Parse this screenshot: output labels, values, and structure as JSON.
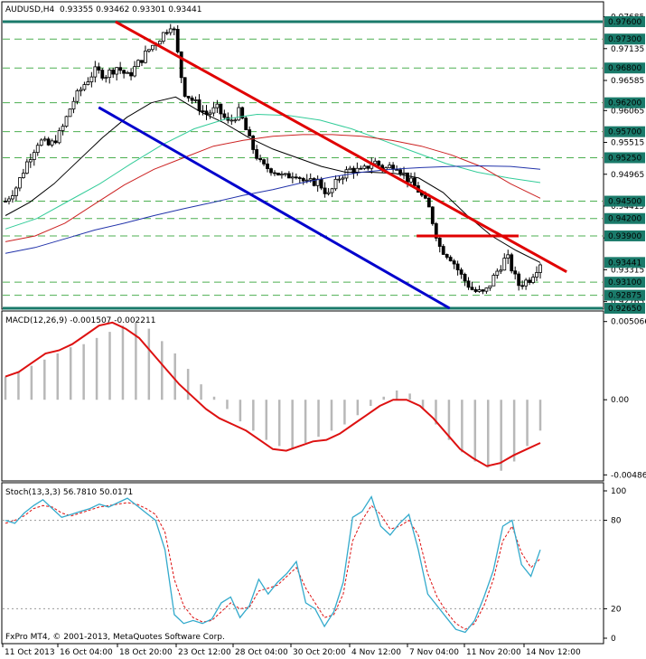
{
  "header": {
    "symbol": "AUDUSD,H4",
    "ohlc": "0.93355 0.93462 0.93301 0.93441"
  },
  "macd": {
    "title": "MACD(12,26,9) -0.001507 -0.002211"
  },
  "stoch": {
    "title": "Stoch(13,3,3) 56.7810 50.0171"
  },
  "copyright": "FxPro MT4, © 2001-2013, MetaQuotes Software Corp.",
  "colors": {
    "background": "#ffffff",
    "candle": "#000000",
    "level_line": "#1a7a6a",
    "dashed_level": "#4caf50",
    "resistance": "#e00000",
    "support": "#0000cc",
    "ma_black": "#000000",
    "ma_green": "#33cc99",
    "ma_red": "#cc2222",
    "ma_blue": "#2233aa",
    "macd_hist": "#b8b8b8",
    "macd_signal": "#dd1111",
    "stoch_main": "#33aacc",
    "stoch_signal": "#dd1111",
    "price_tag": "#1a7a6a"
  },
  "chart_data": [
    {
      "type": "candlestick",
      "name": "AUDUSD,H4",
      "y_ticks": [
        "0.97685",
        "0.97135",
        "0.96585",
        "0.96065",
        "0.95515",
        "0.94965",
        "0.94415",
        "0.93865",
        "0.93315",
        "0.92765"
      ],
      "y_tick_values": [
        0.97685,
        0.97135,
        0.96585,
        0.96065,
        0.95515,
        0.94965,
        0.94415,
        0.93865,
        0.93315,
        0.92765
      ],
      "level_tags": [
        {
          "label": "0.97600",
          "value": 0.976,
          "style": "solid"
        },
        {
          "label": "0.97300",
          "value": 0.973,
          "style": "dashed"
        },
        {
          "label": "0.96800",
          "value": 0.968,
          "style": "dashed"
        },
        {
          "label": "0.96200",
          "value": 0.962,
          "style": "dashed"
        },
        {
          "label": "0.95700",
          "value": 0.957,
          "style": "dashed"
        },
        {
          "label": "0.95250",
          "value": 0.9525,
          "style": "dashed"
        },
        {
          "label": "0.94500",
          "value": 0.945,
          "style": "dashed"
        },
        {
          "label": "0.94200",
          "value": 0.942,
          "style": "dashed"
        },
        {
          "label": "0.93900",
          "value": 0.939,
          "style": "dashed"
        },
        {
          "label": "0.93441",
          "value": 0.93441,
          "style": "price"
        },
        {
          "label": "0.93100",
          "value": 0.931,
          "style": "dashed"
        },
        {
          "label": "0.92875",
          "value": 0.92875,
          "style": "dashed"
        },
        {
          "label": "0.92650",
          "value": 0.9265,
          "style": "solid"
        }
      ],
      "x_labels": [
        "11 Oct 2013",
        "16 Oct 04:00",
        "18 Oct 20:00",
        "23 Oct 12:00",
        "28 Oct 04:00",
        "30 Oct 20:00",
        "4 Nov 12:00",
        "7 Nov 04:00",
        "11 Nov 20:00",
        "14 Nov 12:00"
      ],
      "ylim": [
        0.9265,
        0.9785
      ],
      "close_path": [
        0.945,
        0.9475,
        0.952,
        0.9555,
        0.9545,
        0.957,
        0.962,
        0.965,
        0.9675,
        0.9668,
        0.9682,
        0.9665,
        0.969,
        0.9715,
        0.9735,
        0.976,
        0.964,
        0.962,
        0.96,
        0.961,
        0.9585,
        0.9605,
        0.955,
        0.951,
        0.9505,
        0.949,
        0.95,
        0.948,
        0.9485,
        0.946,
        0.9492,
        0.9506,
        0.95,
        0.952,
        0.9505,
        0.9515,
        0.949,
        0.947,
        0.9438,
        0.937,
        0.9352,
        0.9318,
        0.9295,
        0.929,
        0.9325,
        0.9355,
        0.9305,
        0.9315,
        0.9344
      ],
      "moving_averages": [
        {
          "color_key": "ma_black",
          "values": [
            0.9425,
            0.9448,
            0.948,
            0.952,
            0.956,
            0.9595,
            0.962,
            0.963,
            0.9605,
            0.9585,
            0.956,
            0.954,
            0.9525,
            0.951,
            0.95,
            0.95,
            0.9498,
            0.949,
            0.9465,
            0.9425,
            0.939,
            0.9365,
            0.9344
          ]
        },
        {
          "color_key": "ma_green",
          "values": [
            0.9402,
            0.942,
            0.945,
            0.948,
            0.9515,
            0.9548,
            0.9575,
            0.9592,
            0.96,
            0.9598,
            0.959,
            0.9575,
            0.9555,
            0.9535,
            0.9515,
            0.95,
            0.949,
            0.9482
          ]
        },
        {
          "color_key": "ma_red",
          "values": [
            0.938,
            0.939,
            0.9412,
            0.9445,
            0.9478,
            0.9505,
            0.9525,
            0.9545,
            0.9555,
            0.9562,
            0.9565,
            0.9565,
            0.9562,
            0.9555,
            0.9545,
            0.953,
            0.951,
            0.948,
            0.9455
          ]
        },
        {
          "color_key": "ma_blue",
          "values": [
            0.936,
            0.937,
            0.9385,
            0.94,
            0.9412,
            0.9425,
            0.9437,
            0.9448,
            0.946,
            0.947,
            0.9482,
            0.9492,
            0.95,
            0.9505,
            0.9508,
            0.951,
            0.9511,
            0.951,
            0.9505
          ]
        }
      ],
      "trendlines": [
        {
          "color_key": "resistance",
          "from": [
            0.188,
            0.976
          ],
          "to": [
            0.94,
            0.9328
          ]
        },
        {
          "color_key": "support",
          "from": [
            0.16,
            0.9612
          ],
          "to": [
            0.745,
            0.9265
          ]
        },
        {
          "color_key": "resistance",
          "from": [
            0.69,
            0.939
          ],
          "to": [
            0.86,
            0.939
          ]
        }
      ]
    },
    {
      "type": "histogram+line",
      "name": "MACD(12,26,9)",
      "y_ticks": [
        "0.005066",
        "0.00",
        "-0.004868"
      ],
      "y_tick_values": [
        0.005066,
        0.0,
        -0.004868
      ],
      "ylim": [
        -0.0052,
        0.0054
      ],
      "histogram": [
        0.0015,
        0.0018,
        0.0022,
        0.0026,
        0.003,
        0.0034,
        0.0036,
        0.004,
        0.0044,
        0.0048,
        0.005,
        0.0046,
        0.0038,
        0.003,
        0.002,
        0.001,
        0.0002,
        -0.0006,
        -0.0014,
        -0.002,
        -0.0026,
        -0.003,
        -0.0032,
        -0.0028,
        -0.0024,
        -0.002,
        -0.0016,
        -0.001,
        -0.0004,
        0.0002,
        0.0006,
        0.0004,
        -0.0006,
        -0.0016,
        -0.0026,
        -0.0034,
        -0.004,
        -0.0044,
        -0.0046,
        -0.004,
        -0.003,
        -0.002
      ],
      "signal": [
        0.0015,
        0.0018,
        0.0024,
        0.003,
        0.0032,
        0.0036,
        0.0042,
        0.0048,
        0.005,
        0.0046,
        0.004,
        0.003,
        0.002,
        0.001,
        0.0002,
        -0.0006,
        -0.0012,
        -0.0016,
        -0.002,
        -0.0026,
        -0.0032,
        -0.0033,
        -0.003,
        -0.0027,
        -0.0026,
        -0.0022,
        -0.0016,
        -0.001,
        -0.0004,
        0.0,
        0.0,
        -0.0004,
        -0.0012,
        -0.0022,
        -0.0032,
        -0.0038,
        -0.0043,
        -0.0041,
        -0.0036,
        -0.0032,
        -0.0028
      ]
    },
    {
      "type": "line",
      "name": "Stoch(13,3,3)",
      "y_ticks": [
        "100",
        "80",
        "20",
        "0"
      ],
      "y_tick_values": [
        100,
        80,
        20,
        0
      ],
      "ylim": [
        0,
        100
      ],
      "main": [
        80,
        78,
        85,
        90,
        94,
        88,
        82,
        84,
        86,
        88,
        91,
        89,
        92,
        95,
        90,
        85,
        80,
        60,
        16,
        10,
        12,
        10,
        13,
        24,
        28,
        14,
        22,
        40,
        30,
        38,
        44,
        52,
        24,
        20,
        8,
        18,
        38,
        82,
        86,
        96,
        76,
        70,
        78,
        84,
        60,
        30,
        22,
        14,
        6,
        4,
        12,
        28,
        46,
        76,
        80,
        50,
        42,
        60
      ],
      "signal": [
        78,
        80,
        83,
        88,
        90,
        89,
        85,
        83,
        85,
        87,
        89,
        90,
        91,
        92,
        91,
        88,
        84,
        72,
        40,
        22,
        14,
        11,
        12,
        18,
        24,
        20,
        21,
        32,
        34,
        36,
        42,
        48,
        34,
        24,
        14,
        16,
        30,
        66,
        80,
        90,
        84,
        74,
        76,
        80,
        70,
        44,
        28,
        18,
        10,
        6,
        10,
        22,
        40,
        66,
        76,
        58,
        48,
        54
      ]
    }
  ]
}
